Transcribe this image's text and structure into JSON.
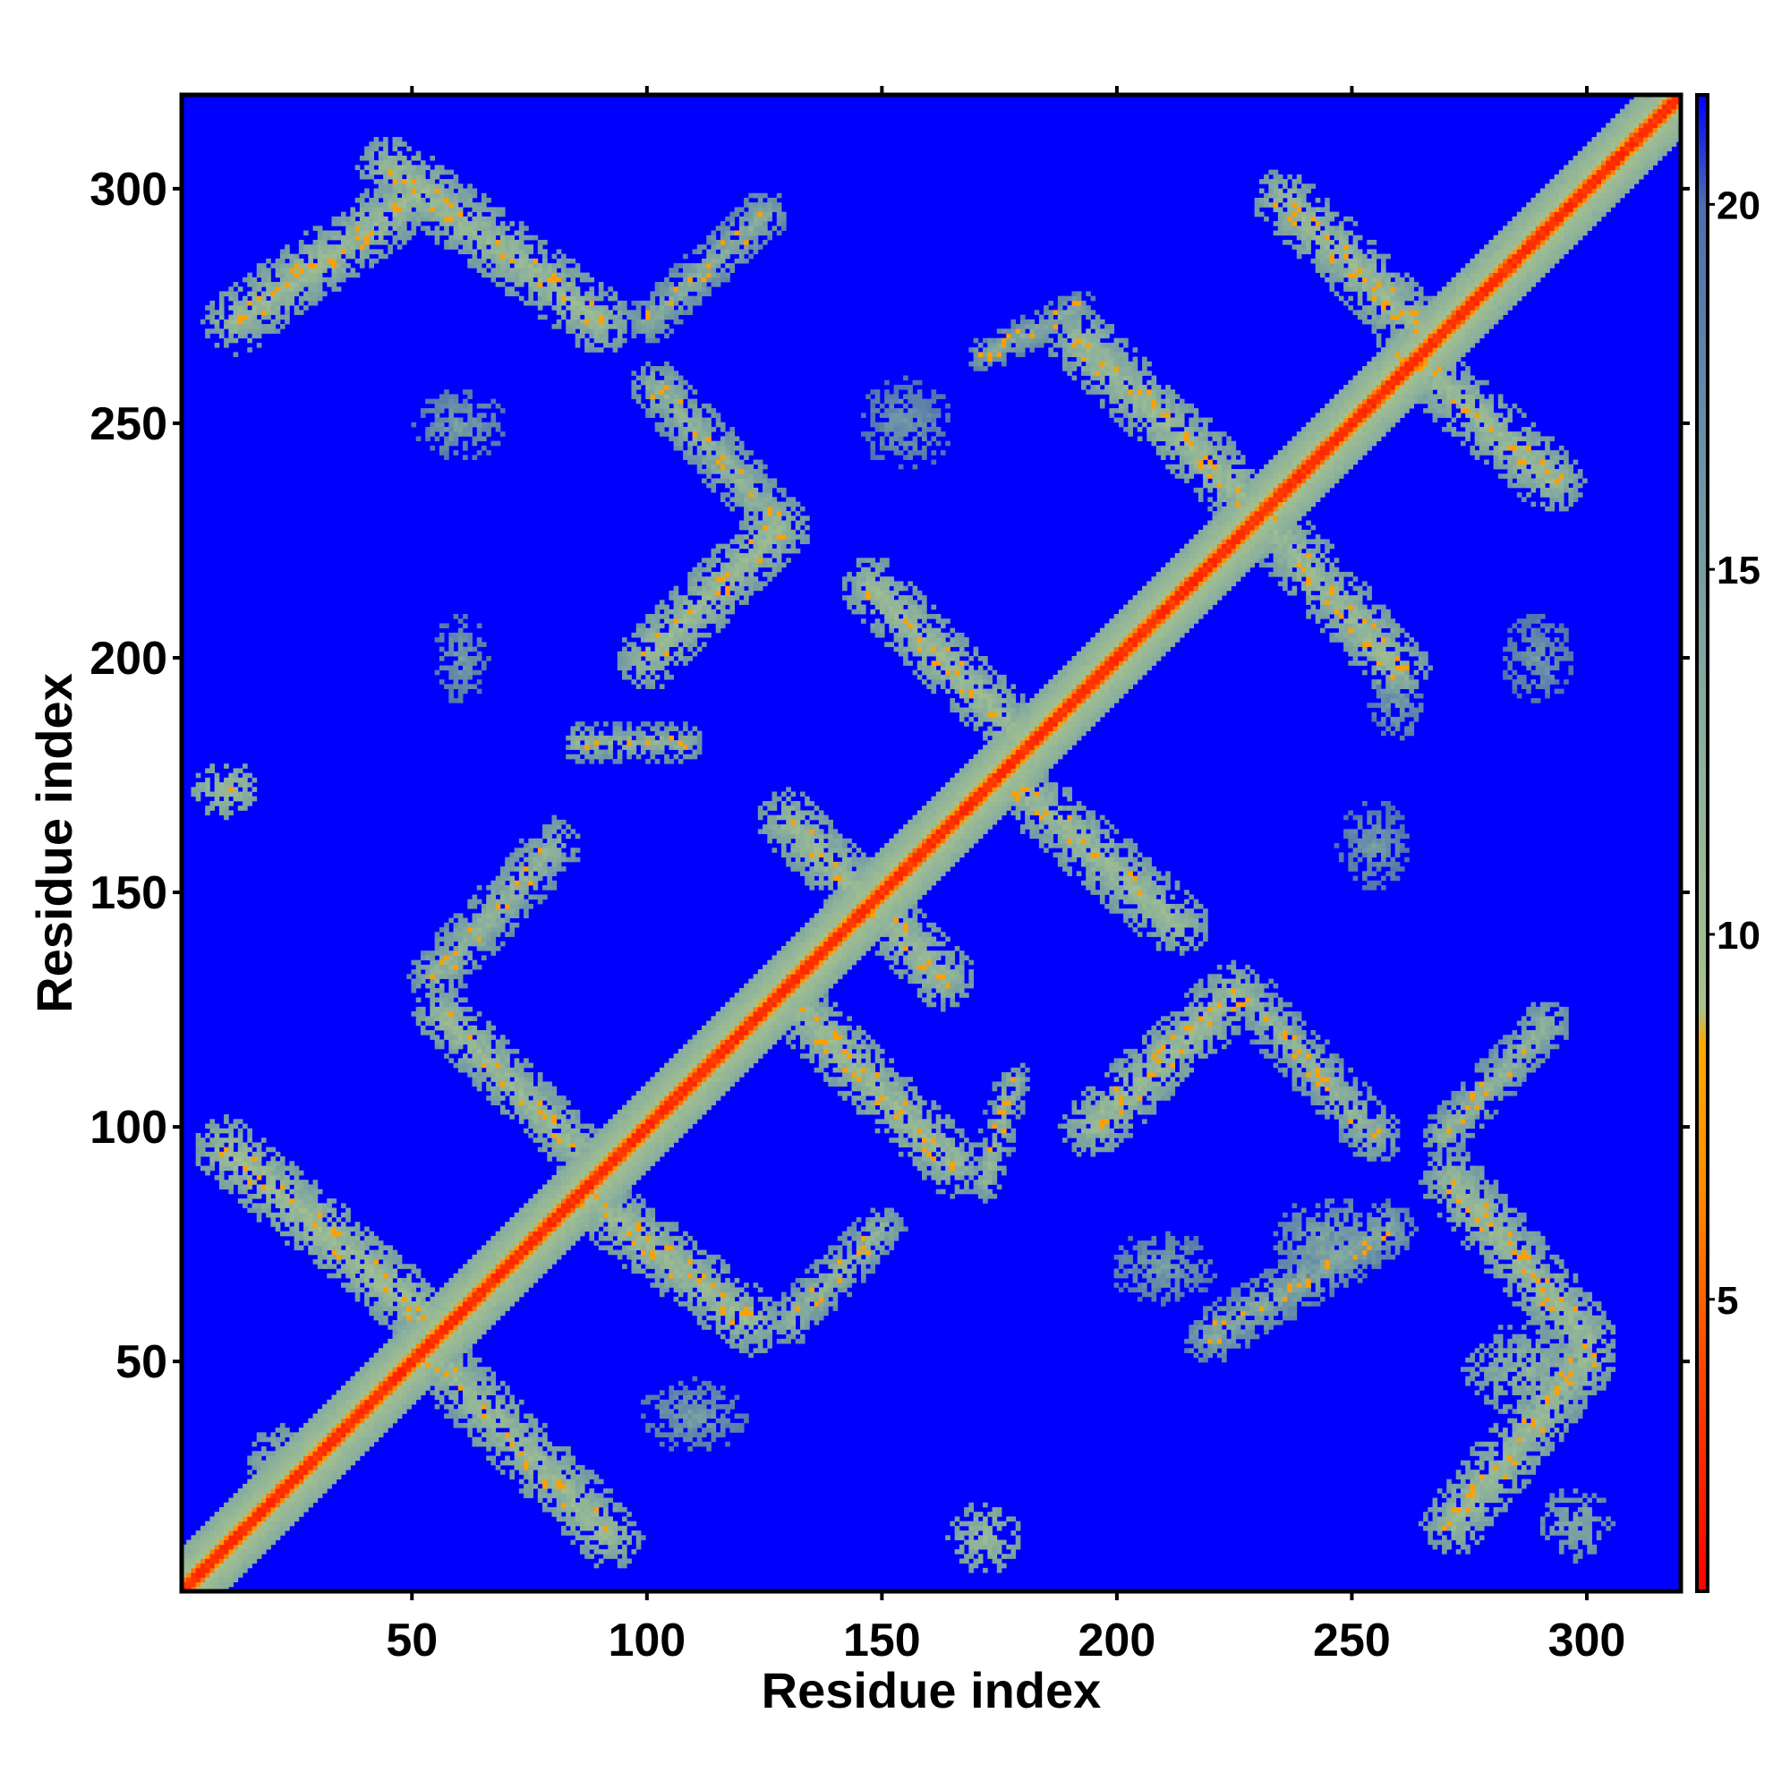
{
  "chart_data": {
    "type": "heatmap",
    "title": "",
    "xlabel": "Residue index",
    "ylabel": "Residue index",
    "n_residues": 320,
    "xlim": [
      1,
      320
    ],
    "ylim": [
      1,
      320
    ],
    "x_ticks": [
      50,
      100,
      150,
      200,
      250,
      300
    ],
    "y_ticks": [
      50,
      100,
      150,
      200,
      250,
      300
    ],
    "colorbar": {
      "ticks": [
        5,
        10,
        15,
        20
      ],
      "range": [
        1,
        21.5
      ],
      "stops": [
        {
          "value": 1,
          "color": "#ff0000"
        },
        {
          "value": 4,
          "color": "#ff4400"
        },
        {
          "value": 6.5,
          "color": "#ff8c00"
        },
        {
          "value": 8.5,
          "color": "#ffa800"
        },
        {
          "value": 9,
          "color": "#a8c28c"
        },
        {
          "value": 12,
          "color": "#8fb39a"
        },
        {
          "value": 16,
          "color": "#6f96a6"
        },
        {
          "value": 20,
          "color": "#4b6fb0"
        },
        {
          "value": 21.5,
          "color": "#0000ff"
        }
      ]
    },
    "background_color": "#0000ff",
    "diagonal": {
      "core_value": 2.5,
      "halo_width": 9
    },
    "contact_bands": [
      {
        "x1": 12,
        "y1": 272,
        "x2": 52,
        "y2": 300,
        "width": 7,
        "value": 11
      },
      {
        "x1": 45,
        "y1": 305,
        "x2": 90,
        "y2": 272,
        "width": 7,
        "value": 11
      },
      {
        "x1": 100,
        "y1": 272,
        "x2": 125,
        "y2": 295,
        "width": 5,
        "value": 13
      },
      {
        "x1": 102,
        "y1": 258,
        "x2": 127,
        "y2": 230,
        "width": 6,
        "value": 12
      },
      {
        "x1": 100,
        "y1": 200,
        "x2": 128,
        "y2": 228,
        "width": 7,
        "value": 11
      },
      {
        "x1": 130,
        "y1": 165,
        "x2": 163,
        "y2": 132,
        "width": 7,
        "value": 11
      },
      {
        "x1": 85,
        "y1": 182,
        "x2": 108,
        "y2": 182,
        "width": 4,
        "value": 12
      },
      {
        "x1": 55,
        "y1": 132,
        "x2": 80,
        "y2": 160,
        "width": 6,
        "value": 12
      },
      {
        "x1": 56,
        "y1": 124,
        "x2": 85,
        "y2": 95,
        "width": 6,
        "value": 11
      },
      {
        "x1": 10,
        "y1": 95,
        "x2": 55,
        "y2": 57,
        "width": 7,
        "value": 10.5
      },
      {
        "x1": 55,
        "y1": 50,
        "x2": 92,
        "y2": 12,
        "width": 7,
        "value": 11
      },
      {
        "x1": 88,
        "y1": 84,
        "x2": 122,
        "y2": 58,
        "width": 7,
        "value": 11
      },
      {
        "x1": 130,
        "y1": 58,
        "x2": 150,
        "y2": 78,
        "width": 5,
        "value": 12
      },
      {
        "x1": 133,
        "y1": 124,
        "x2": 165,
        "y2": 92,
        "width": 7,
        "value": 11
      },
      {
        "x1": 172,
        "y1": 88,
        "x2": 178,
        "y2": 110,
        "width": 4,
        "value": 12
      },
      {
        "x1": 148,
        "y1": 215,
        "x2": 178,
        "y2": 185,
        "width": 7,
        "value": 11
      },
      {
        "x1": 180,
        "y1": 172,
        "x2": 213,
        "y2": 143,
        "width": 7,
        "value": 11
      },
      {
        "x1": 195,
        "y1": 100,
        "x2": 225,
        "y2": 128,
        "width": 7,
        "value": 11
      },
      {
        "x1": 228,
        "y1": 128,
        "x2": 255,
        "y2": 98,
        "width": 6,
        "value": 12
      },
      {
        "x1": 192,
        "y1": 268,
        "x2": 230,
        "y2": 232,
        "width": 7,
        "value": 11
      },
      {
        "x1": 233,
        "y1": 228,
        "x2": 260,
        "y2": 198,
        "width": 7,
        "value": 11
      },
      {
        "x1": 236,
        "y1": 298,
        "x2": 265,
        "y2": 270,
        "width": 7,
        "value": 11
      },
      {
        "x1": 262,
        "y1": 265,
        "x2": 293,
        "y2": 238,
        "width": 7,
        "value": 11
      },
      {
        "x1": 270,
        "y1": 98,
        "x2": 292,
        "y2": 122,
        "width": 5,
        "value": 12
      },
      {
        "x1": 272,
        "y1": 88,
        "x2": 300,
        "y2": 55,
        "width": 7,
        "value": 11
      },
      {
        "x1": 272,
        "y1": 15,
        "x2": 300,
        "y2": 50,
        "width": 7,
        "value": 11
      },
      {
        "x1": 220,
        "y1": 55,
        "x2": 258,
        "y2": 78,
        "width": 6,
        "value": 13.5
      },
      {
        "x1": 172,
        "y1": 265,
        "x2": 192,
        "y2": 275,
        "width": 4,
        "value": 13.5
      }
    ],
    "contact_blobs": [
      {
        "x": 10,
        "y": 172,
        "rx": 8,
        "ry": 6,
        "value": 10.5
      },
      {
        "x": 172,
        "y": 12,
        "rx": 8,
        "ry": 8,
        "value": 11
      },
      {
        "x": 245,
        "y": 75,
        "rx": 12,
        "ry": 10,
        "value": 14
      },
      {
        "x": 288,
        "y": 48,
        "rx": 14,
        "ry": 10,
        "value": 12
      },
      {
        "x": 22,
        "y": 28,
        "rx": 8,
        "ry": 8,
        "value": 12
      },
      {
        "x": 298,
        "y": 15,
        "rx": 8,
        "ry": 8,
        "value": 13
      },
      {
        "x": 60,
        "y": 250,
        "rx": 10,
        "ry": 8,
        "value": 15
      },
      {
        "x": 60,
        "y": 200,
        "rx": 6,
        "ry": 10,
        "value": 15
      },
      {
        "x": 260,
        "y": 190,
        "rx": 6,
        "ry": 8,
        "value": 15
      },
      {
        "x": 255,
        "y": 160,
        "rx": 8,
        "ry": 10,
        "value": 15.5
      },
      {
        "x": 155,
        "y": 250,
        "rx": 10,
        "ry": 10,
        "value": 15.5
      },
      {
        "x": 290,
        "y": 200,
        "rx": 8,
        "ry": 10,
        "value": 15.5
      },
      {
        "x": 110,
        "y": 38,
        "rx": 12,
        "ry": 8,
        "value": 15
      },
      {
        "x": 210,
        "y": 70,
        "rx": 12,
        "ry": 8,
        "value": 15
      }
    ]
  }
}
